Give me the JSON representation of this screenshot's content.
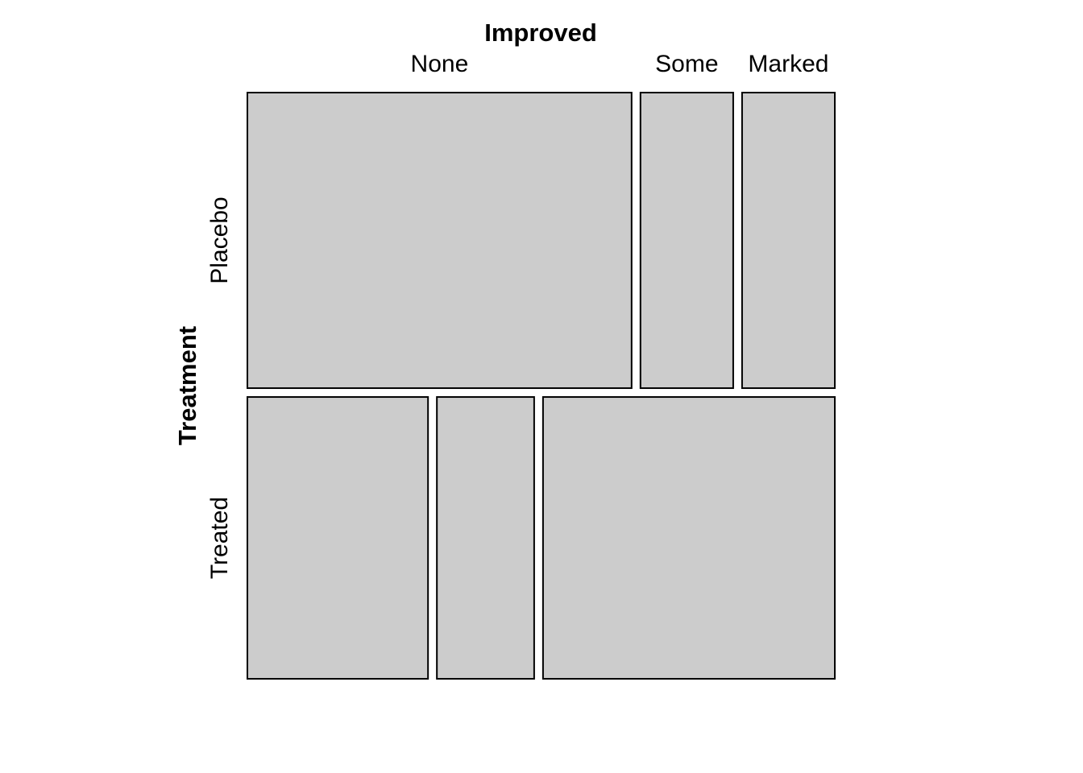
{
  "chart_data": {
    "type": "mosaic",
    "xlabel": "Improved",
    "ylabel": "Treatment",
    "x_levels": [
      "None",
      "Some",
      "Marked"
    ],
    "y_levels": [
      "Placebo",
      "Treated"
    ],
    "cells": [
      {
        "Treatment": "Placebo",
        "Improved": "None",
        "count": 29
      },
      {
        "Treatment": "Placebo",
        "Improved": "Some",
        "count": 7
      },
      {
        "Treatment": "Placebo",
        "Improved": "Marked",
        "count": 7
      },
      {
        "Treatment": "Treated",
        "Improved": "None",
        "count": 13
      },
      {
        "Treatment": "Treated",
        "Improved": "Some",
        "count": 7
      },
      {
        "Treatment": "Treated",
        "Improved": "Marked",
        "count": 21
      }
    ],
    "fill_color": "#cccccc",
    "border_color": "#000000",
    "grid": false,
    "legend": "none"
  }
}
